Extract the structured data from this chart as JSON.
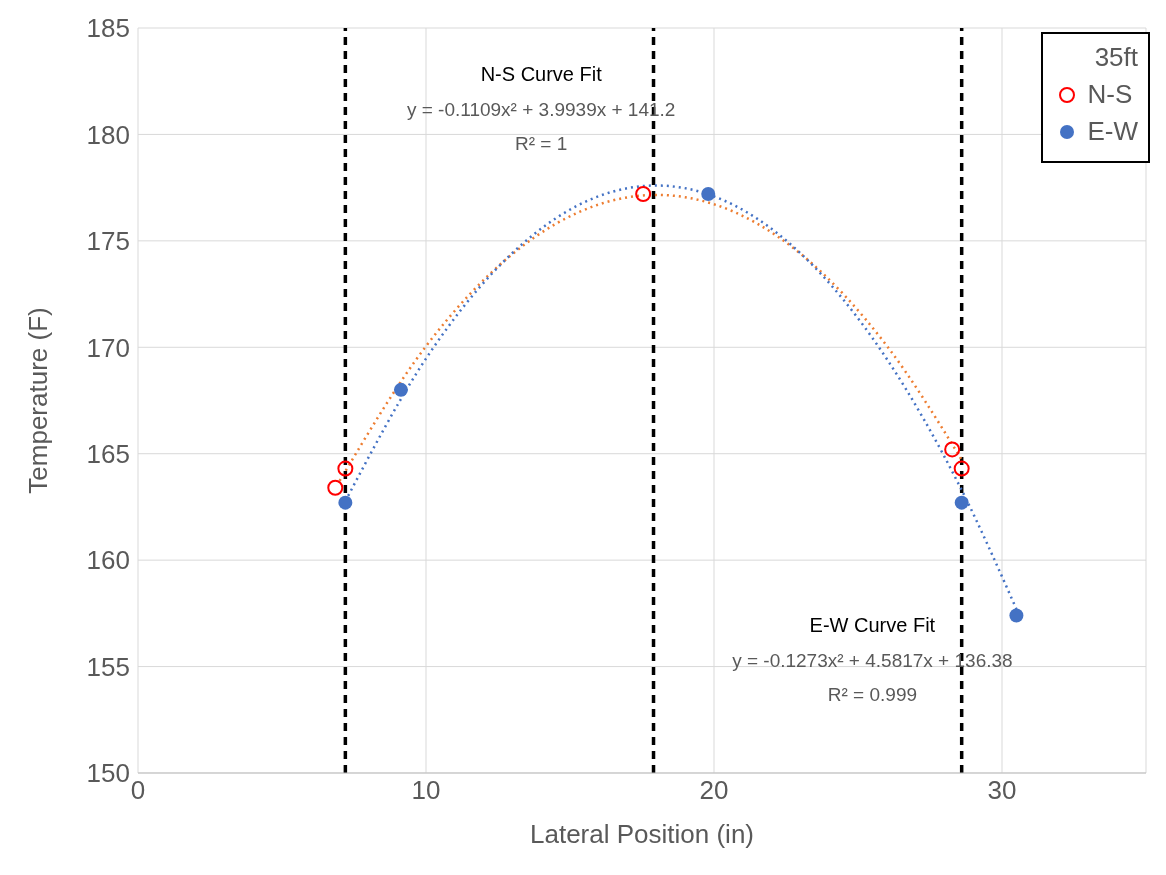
{
  "chart_data": {
    "type": "scatter",
    "xlabel": "Lateral Position (in)",
    "ylabel": "Temperature (F)",
    "legend_title": "35ft",
    "xlim": [
      0,
      35
    ],
    "xticks": [
      0,
      10,
      20,
      30
    ],
    "ylim": [
      150,
      185
    ],
    "yticks": [
      150,
      155,
      160,
      165,
      170,
      175,
      180,
      185
    ],
    "grid": true,
    "legend": "top right",
    "marker": "circle",
    "series": [
      {
        "name": "N-S",
        "color": "#ff0000",
        "x": [
          6.85,
          7.2,
          17.54,
          28.27,
          28.6
        ],
        "values": [
          163.4,
          164.3,
          177.2,
          165.2,
          164.3
        ]
      },
      {
        "name": "E-W",
        "color": "#4472c4",
        "x": [
          7.2,
          9.13,
          19.8,
          28.6,
          30.5
        ],
        "values": [
          162.7,
          168.0,
          177.2,
          162.7,
          157.4
        ]
      },
      {
        "type": "line",
        "color": "#ed7d31",
        "line_style": "dotted",
        "marker": "none",
        "x": [
          7,
          10,
          13,
          16,
          18,
          20,
          23,
          26,
          28.6
        ],
        "values": [
          163.72,
          170.05,
          174.38,
          176.71,
          177.16,
          176.72,
          174.4,
          170.07,
          164.72
        ]
      },
      {
        "type": "line",
        "color": "#4472c4",
        "line_style": "dotted",
        "marker": "none",
        "x": [
          7.2,
          10,
          13,
          16,
          18,
          20,
          23,
          26,
          28.6,
          30.5
        ],
        "values": [
          162.77,
          169.47,
          174.43,
          177.1,
          177.6,
          177.09,
          174.42,
          169.45,
          163.29,
          157.7
        ]
      }
    ],
    "ref_lines": [
      {
        "axis": "x",
        "value": 7.2,
        "color": "#000000",
        "line_style": "dashed"
      },
      {
        "axis": "x",
        "value": 17.9,
        "color": "#000000",
        "line_style": "dashed"
      },
      {
        "axis": "x",
        "value": 28.6,
        "color": "#000000",
        "line_style": "dashed"
      }
    ],
    "annotations": [
      "N-S Curve Fit",
      "y = -0.1109x² + 3.9939x + 141.2",
      "R² = 1",
      "E-W Curve Fit",
      "y = -0.1273x² + 4.5817x + 136.38",
      "R² = 0.999"
    ]
  }
}
